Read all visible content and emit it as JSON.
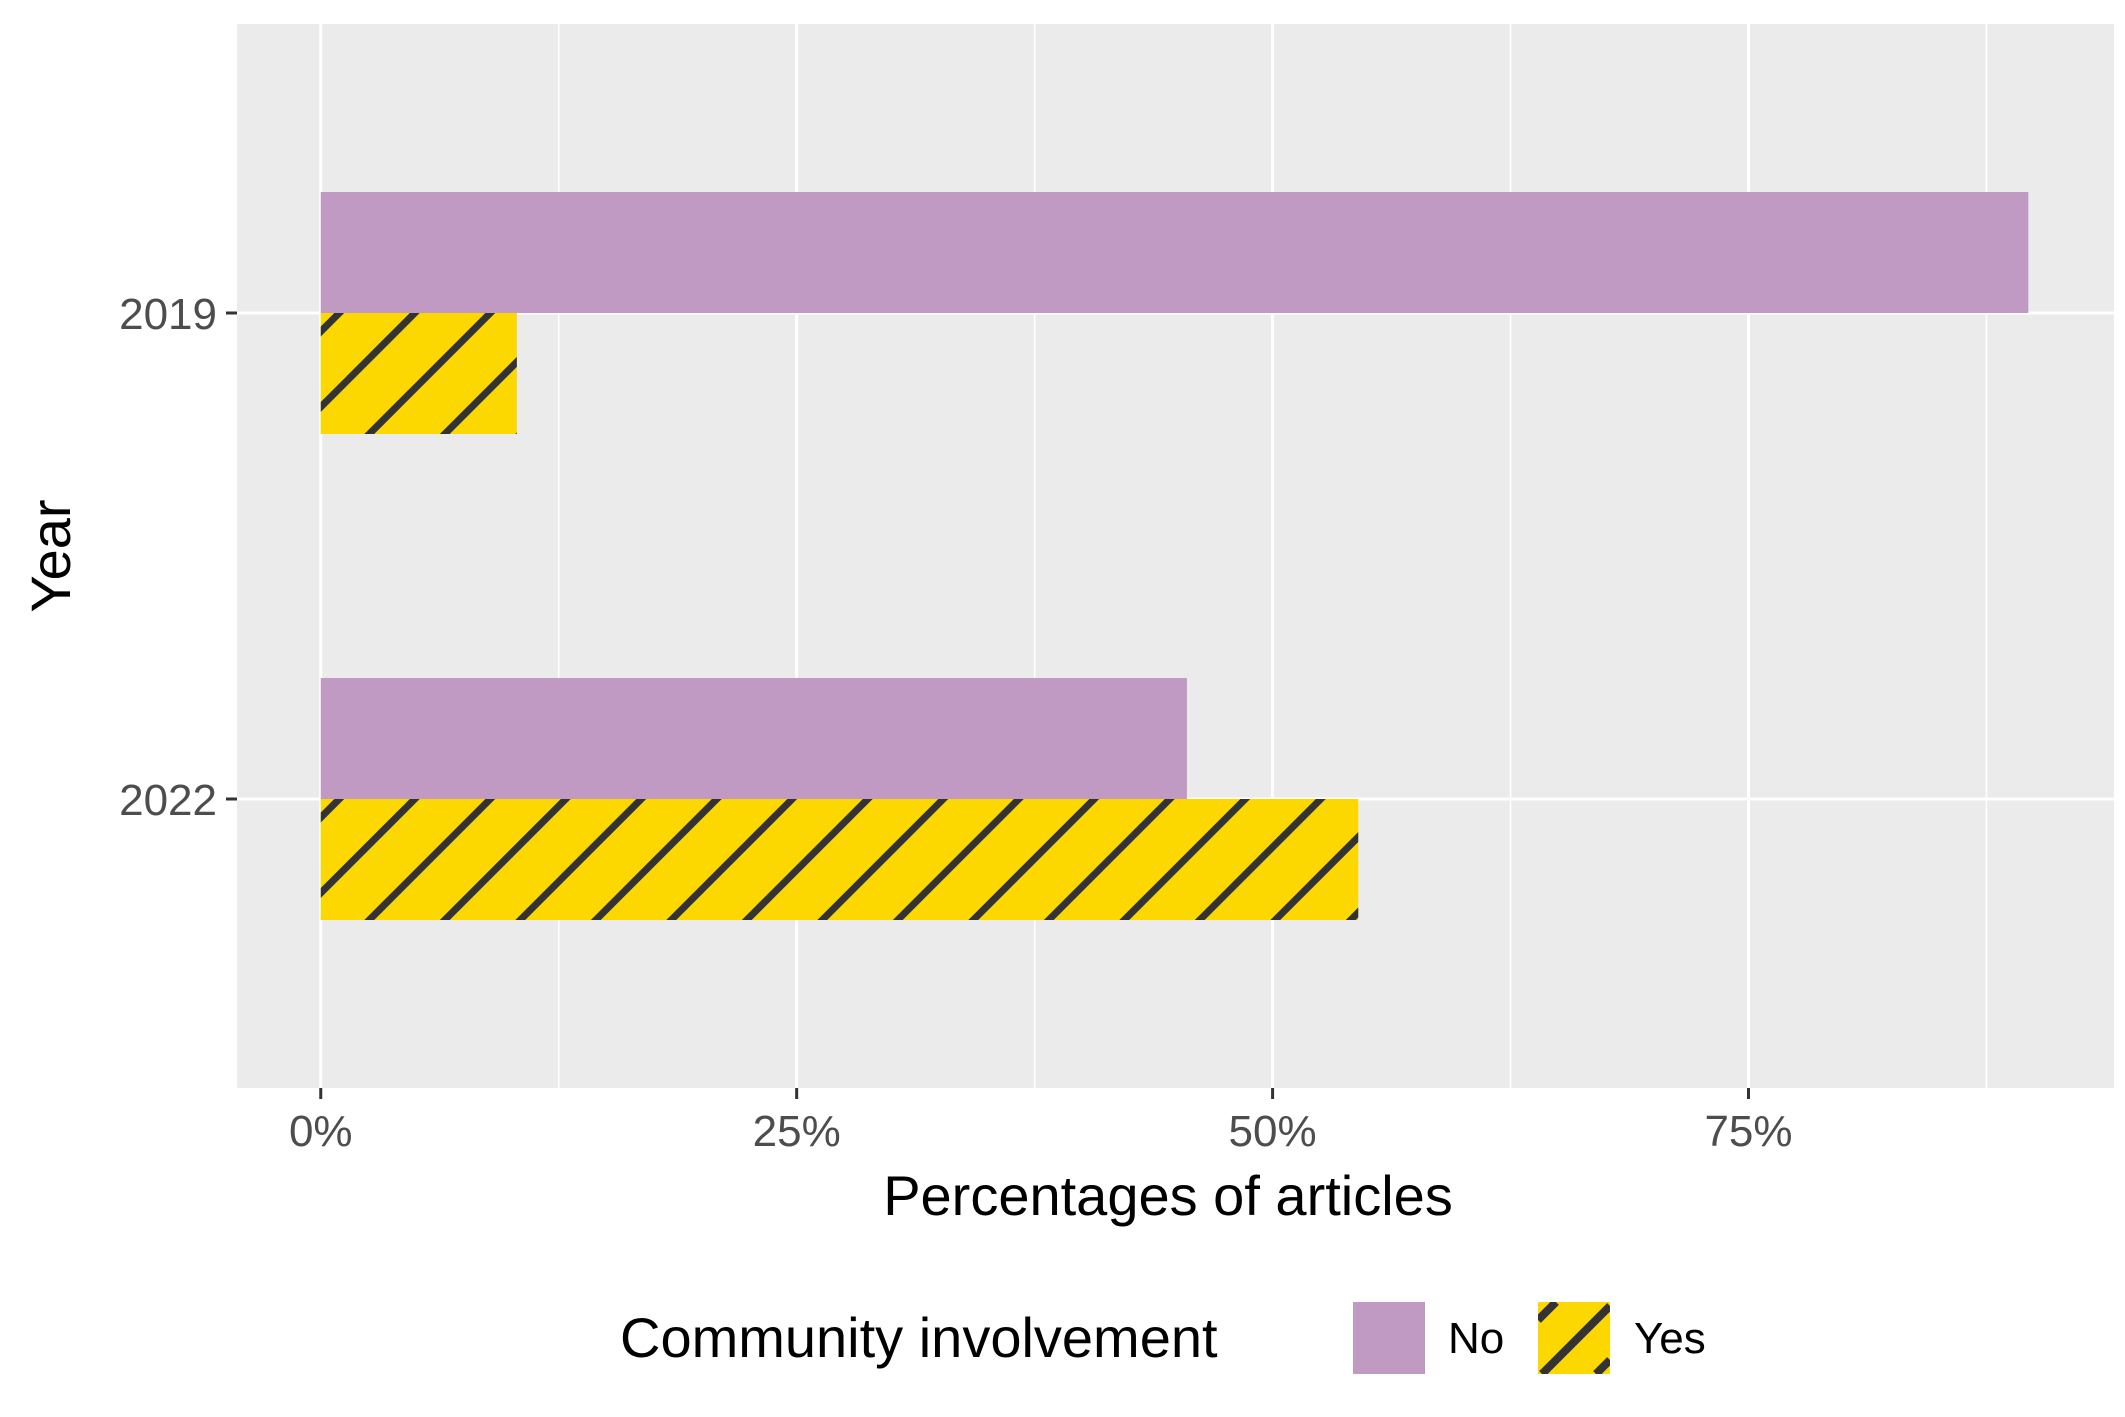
{
  "chart_data": {
    "type": "bar",
    "orientation": "horizontal",
    "xlabel": "Percentages of articles",
    "ylabel": "Year",
    "categories": [
      "2019",
      "2022"
    ],
    "series": [
      {
        "name": "No",
        "values": [
          89.7,
          45.5
        ],
        "color": "#c09ac3",
        "pattern": "none"
      },
      {
        "name": "Yes",
        "values": [
          10.3,
          54.5
        ],
        "color": "#fcd700",
        "pattern": "diagonal-stripes"
      }
    ],
    "x_ticks": [
      "0%",
      "25%",
      "50%",
      "75%"
    ],
    "x_tick_values": [
      0,
      25,
      50,
      75
    ],
    "xlim": [
      -4.4,
      94.2
    ],
    "grid": true,
    "legend": {
      "title": "Community involvement",
      "position": "bottom"
    },
    "colors": {
      "panel_bg": "#ebebeb",
      "grid": "#ffffff",
      "stripe": "#333333"
    }
  }
}
